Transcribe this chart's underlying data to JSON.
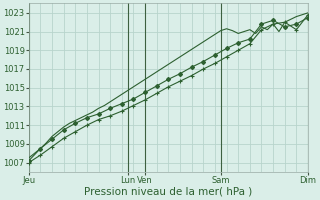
{
  "background_color": "#daeee8",
  "grid_color": "#b8d4cc",
  "line_color": "#2d6030",
  "marker_color": "#2d6030",
  "ylim": [
    1006,
    1024
  ],
  "yticks": [
    1007,
    1009,
    1011,
    1013,
    1015,
    1017,
    1019,
    1021,
    1023
  ],
  "xlabel": "Pression niveau de la mer( hPa )",
  "xlabel_fontsize": 7.5,
  "tick_fontsize": 6,
  "x_tick_labels": [
    "Jeu",
    "Lun",
    "Ven",
    "Sam",
    "Dim"
  ],
  "num_steps": 48,
  "series1_x": [
    0,
    2,
    4,
    6,
    8,
    10,
    12,
    14,
    16,
    18,
    20,
    22,
    24,
    26,
    28,
    30,
    32,
    34,
    36,
    38,
    40,
    42,
    44,
    46,
    48
  ],
  "series1_y": [
    1007.0,
    1007.8,
    1008.7,
    1009.6,
    1010.3,
    1011.0,
    1011.6,
    1012.0,
    1012.5,
    1013.1,
    1013.7,
    1014.4,
    1015.1,
    1015.7,
    1016.3,
    1017.0,
    1017.6,
    1018.3,
    1019.0,
    1019.7,
    1021.2,
    1021.8,
    1022.0,
    1021.2,
    1022.8
  ],
  "series2_x": [
    0,
    1,
    2,
    3,
    4,
    5,
    6,
    7,
    8,
    9,
    10,
    11,
    12,
    13,
    14,
    15,
    16,
    17,
    18,
    19,
    20,
    21,
    22,
    23,
    24,
    25,
    26,
    27,
    28,
    29,
    30,
    31,
    32,
    33,
    34,
    35,
    36,
    37,
    38,
    39,
    40,
    41,
    42,
    43,
    44,
    45,
    46,
    47,
    48
  ],
  "series2_y": [
    1007.5,
    1008.0,
    1008.5,
    1009.1,
    1009.8,
    1010.3,
    1010.8,
    1011.2,
    1011.5,
    1011.8,
    1012.1,
    1012.4,
    1012.8,
    1013.1,
    1013.5,
    1013.9,
    1014.3,
    1014.7,
    1015.1,
    1015.5,
    1015.9,
    1016.3,
    1016.7,
    1017.1,
    1017.5,
    1017.9,
    1018.3,
    1018.7,
    1019.1,
    1019.5,
    1019.9,
    1020.3,
    1020.7,
    1021.1,
    1021.3,
    1021.1,
    1020.8,
    1021.0,
    1021.2,
    1020.8,
    1021.5,
    1021.2,
    1021.8,
    1021.0,
    1022.0,
    1022.3,
    1022.6,
    1022.8,
    1023.0
  ],
  "series3_x": [
    0,
    2,
    4,
    6,
    8,
    10,
    12,
    14,
    16,
    18,
    20,
    22,
    24,
    26,
    28,
    30,
    32,
    34,
    36,
    38,
    40,
    42,
    44,
    46,
    48
  ],
  "series3_y": [
    1007.2,
    1008.5,
    1009.5,
    1010.5,
    1011.2,
    1011.8,
    1012.2,
    1012.8,
    1013.3,
    1013.8,
    1014.5,
    1015.2,
    1015.9,
    1016.5,
    1017.2,
    1017.8,
    1018.5,
    1019.2,
    1019.8,
    1020.2,
    1021.8,
    1022.2,
    1021.5,
    1021.8,
    1022.5
  ]
}
